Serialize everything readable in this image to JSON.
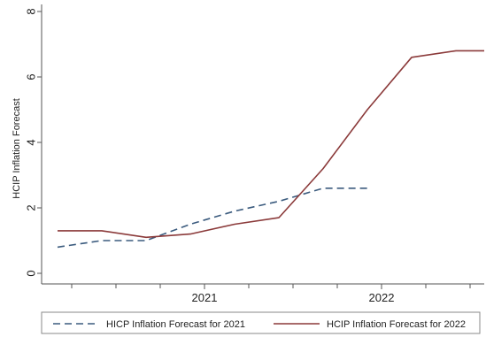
{
  "chart_data": {
    "type": "line",
    "ylabel": "HCIP Inflation Forecast",
    "xlabel": "",
    "ylim": [
      0,
      8
    ],
    "yticks": [
      0,
      2,
      4,
      6,
      8
    ],
    "xlim": [
      2020.08,
      2022.58
    ],
    "xtick_labels": [
      "2021",
      "2022"
    ],
    "xtick_values": [
      2021.0,
      2022.0
    ],
    "x_minor_ticks": [
      2020.25,
      2020.5,
      2020.75,
      2021.25,
      2021.5,
      2021.75,
      2022.25,
      2022.5
    ],
    "grid": false,
    "legend_position": "bottom",
    "series": [
      {
        "name": "HICP Inflation Forecast for 2021",
        "color": "#3b5b7e",
        "dash": "dashed",
        "x": [
          2020.17,
          2020.42,
          2020.67,
          2020.92,
          2021.17,
          2021.42,
          2021.67,
          2021.92
        ],
        "y": [
          0.8,
          1.0,
          1.0,
          1.5,
          1.9,
          2.2,
          2.6,
          2.6
        ]
      },
      {
        "name": "HCIP Inflation Forecast for 2022",
        "color": "#8b3a3a",
        "dash": "solid",
        "x": [
          2020.17,
          2020.42,
          2020.67,
          2020.92,
          2021.17,
          2021.42,
          2021.67,
          2021.92,
          2022.17,
          2022.42,
          2022.58
        ],
        "y": [
          1.3,
          1.3,
          1.1,
          1.2,
          1.5,
          1.7,
          3.2,
          5.0,
          6.6,
          6.8,
          6.8
        ]
      }
    ]
  }
}
